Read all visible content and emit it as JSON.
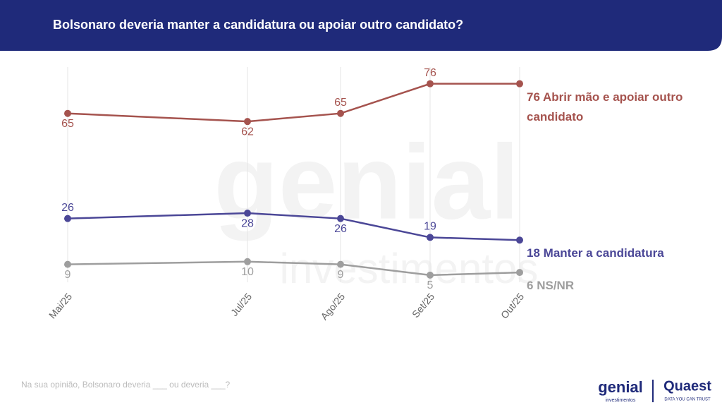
{
  "chart_data": {
    "type": "line",
    "title": "Bolsonaro deveria manter a candidatura ou apoiar outro candidato?",
    "categories": [
      "Mai/25",
      "Jul/25",
      "Ago/25",
      "Set/25",
      "Out/25"
    ],
    "series": [
      {
        "name": "Abrir mão e apoiar outro candidato",
        "color": "#a5534e",
        "values": [
          65,
          62,
          65,
          76,
          76
        ]
      },
      {
        "name": "Manter a candidatura",
        "color": "#4b4797",
        "values": [
          26,
          28,
          26,
          19,
          18
        ]
      },
      {
        "name": "NS/NR",
        "color": "#9e9e9e",
        "values": [
          9,
          10,
          9,
          5,
          6
        ]
      }
    ],
    "ylim": [
      0,
      100
    ],
    "grid": true,
    "footnote": "Na sua opinião, Bolsonaro deveria ___ ou deveria ___?",
    "watermark": [
      "genial",
      "investimentos"
    ],
    "logos": [
      "genial",
      "investimentos",
      "Quaest",
      "DATA YOU CAN TRUST"
    ]
  }
}
